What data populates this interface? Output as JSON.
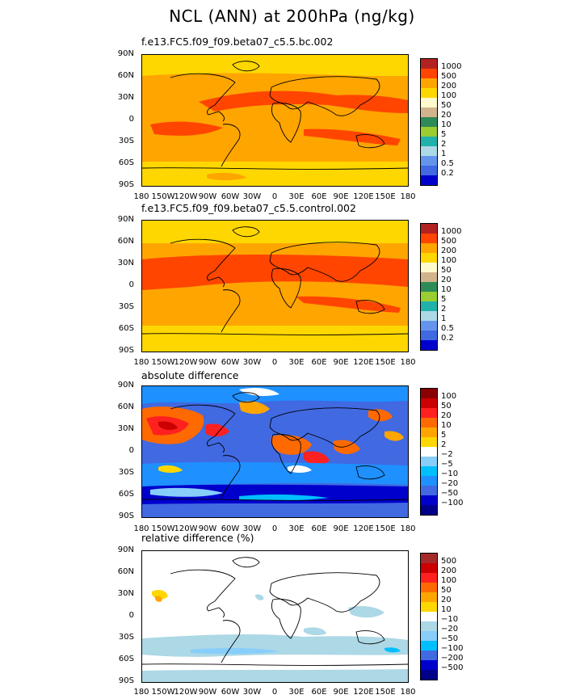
{
  "title": "NCL (ANN) at 200hPa (ng/kg)",
  "lat_ticks": [
    "90N",
    "60N",
    "30N",
    "0",
    "30S",
    "60S",
    "90S"
  ],
  "lon_ticks": [
    "180",
    "150W",
    "120W",
    "90W",
    "60W",
    "30W",
    "0",
    "30E",
    "60E",
    "90E",
    "120E",
    "150E",
    "180"
  ],
  "chart_data": [
    {
      "type": "heatmap",
      "title": "f.e13.FC5.f09_f09.beta07_c5.5.bc.002",
      "colorbar": {
        "labels": [
          "1000",
          "500",
          "200",
          "100",
          "50",
          "20",
          "10",
          "5",
          "2",
          "1",
          "0.5",
          "0.2"
        ],
        "colors": [
          "#b22222",
          "#ff4500",
          "#ffa500",
          "#ffd700",
          "#fffacd",
          "#d2b48c",
          "#2e8b57",
          "#9acd32",
          "#20b2aa",
          "#add8e6",
          "#6495ed",
          "#4169e1",
          "#0000cd"
        ]
      },
      "dominant_range": "100-500 ng/kg; 500-1000 in tropical bands"
    },
    {
      "type": "heatmap",
      "title": "f.e13.FC5.f09_f09.beta07_c5.5.control.002",
      "colorbar": {
        "labels": [
          "1000",
          "500",
          "200",
          "100",
          "50",
          "20",
          "10",
          "5",
          "2",
          "1",
          "0.5",
          "0.2"
        ],
        "colors": [
          "#b22222",
          "#ff4500",
          "#ffa500",
          "#ffd700",
          "#fffacd",
          "#d2b48c",
          "#2e8b57",
          "#9acd32",
          "#20b2aa",
          "#add8e6",
          "#6495ed",
          "#4169e1",
          "#0000cd"
        ]
      },
      "dominant_range": "100-500 ng/kg; 500-1000 in tropical bands"
    },
    {
      "type": "heatmap",
      "title": "absolute difference",
      "colorbar": {
        "labels": [
          "100",
          "50",
          "20",
          "10",
          "5",
          "2",
          "−2",
          "−5",
          "−10",
          "−20",
          "−50",
          "−100"
        ],
        "colors": [
          "#8b0000",
          "#cc0000",
          "#ff2020",
          "#ff6a00",
          "#ffa500",
          "#ffd700",
          "#ffffff",
          "#87cefa",
          "#00bfff",
          "#1e90ff",
          "#4169e1",
          "#0000cd",
          "#00008b"
        ]
      },
      "dominant_range": "-50 to -10 broadly; positive 10-100 over N Pacific, N Atlantic, Africa"
    },
    {
      "type": "heatmap",
      "title": "relative difference (%)",
      "colorbar": {
        "labels": [
          "500",
          "200",
          "100",
          "50",
          "20",
          "10",
          "−10",
          "−20",
          "−50",
          "−100",
          "−200",
          "−500"
        ],
        "colors": [
          "#a52a2a",
          "#cc0000",
          "#ff2020",
          "#ff6a00",
          "#ffa500",
          "#ffd700",
          "#ffffff",
          "#add8e6",
          "#87cefa",
          "#00bfff",
          "#4169e1",
          "#0000cd",
          "#00008b"
        ]
      },
      "dominant_range": "-10 to 10 mostly; -20 to -10 in southern midlatitudes"
    }
  ]
}
